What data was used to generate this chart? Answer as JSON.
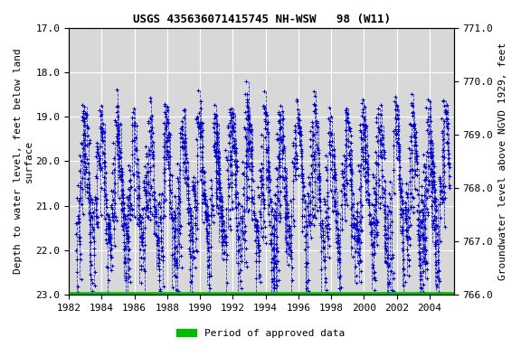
{
  "title": "USGS 435636071415745 NH-WSW   98 (W11)",
  "ylabel_left": "Depth to water level, feet below land\nsurface",
  "ylabel_right": "Groundwater level above NGVD 1929, feet",
  "xlim": [
    1982,
    2005.5
  ],
  "ylim_left_top": 17.0,
  "ylim_left_bottom": 23.0,
  "ylim_right_top": 771.0,
  "ylim_right_bottom": 766.0,
  "yticks_left": [
    17.0,
    18.0,
    19.0,
    20.0,
    21.0,
    22.0,
    23.0
  ],
  "yticks_right": [
    771.0,
    770.0,
    769.0,
    768.0,
    767.0,
    766.0
  ],
  "xticks": [
    1982,
    1984,
    1986,
    1988,
    1990,
    1992,
    1994,
    1996,
    1998,
    2000,
    2002,
    2004
  ],
  "data_color": "#0000CC",
  "approved_color": "#00BB00",
  "background_color": "#ffffff",
  "plot_bg_color": "#d8d8d8",
  "grid_color": "#ffffff",
  "title_fontsize": 9,
  "axis_label_fontsize": 8,
  "tick_fontsize": 8,
  "legend_text": "Period of approved data"
}
